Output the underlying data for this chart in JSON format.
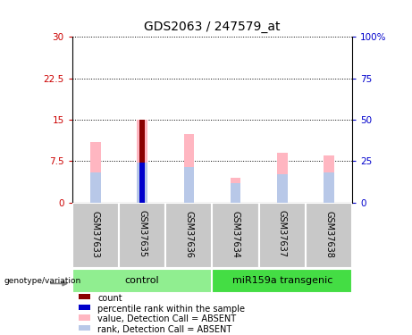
{
  "title": "GDS2063 / 247579_at",
  "samples": [
    "GSM37633",
    "GSM37635",
    "GSM37636",
    "GSM37634",
    "GSM37637",
    "GSM37638"
  ],
  "ylim_left": [
    0,
    30
  ],
  "ylim_right": [
    0,
    100
  ],
  "yticks_left": [
    0,
    7.5,
    15,
    22.5,
    30
  ],
  "yticks_right": [
    0,
    25,
    50,
    75,
    100
  ],
  "ytick_labels_left": [
    "0",
    "7.5",
    "15",
    "22.5",
    "30"
  ],
  "ytick_labels_right": [
    "0",
    "25",
    "50",
    "75",
    "100%"
  ],
  "value_bars": [
    11.0,
    15.0,
    12.5,
    4.5,
    9.0,
    8.5
  ],
  "rank_bars": [
    5.5,
    7.2,
    6.5,
    3.5,
    5.2,
    5.5
  ],
  "count_bar_idx": 1,
  "count_bar_val": 15.0,
  "percentile_bar_val": 7.2,
  "color_value": "#FFB6C1",
  "color_rank": "#B8C8E8",
  "color_count": "#8B0000",
  "color_percentile": "#0000CC",
  "color_ytick_left": "#CC0000",
  "color_ytick_right": "#0000CC",
  "sample_bg_color": "#C8C8C8",
  "ctrl_color": "#90EE90",
  "mir_color": "#44DD44",
  "legend_items": [
    {
      "label": "count",
      "color": "#8B0000"
    },
    {
      "label": "percentile rank within the sample",
      "color": "#0000CC"
    },
    {
      "label": "value, Detection Call = ABSENT",
      "color": "#FFB6C1"
    },
    {
      "label": "rank, Detection Call = ABSENT",
      "color": "#B8C8E8"
    }
  ]
}
